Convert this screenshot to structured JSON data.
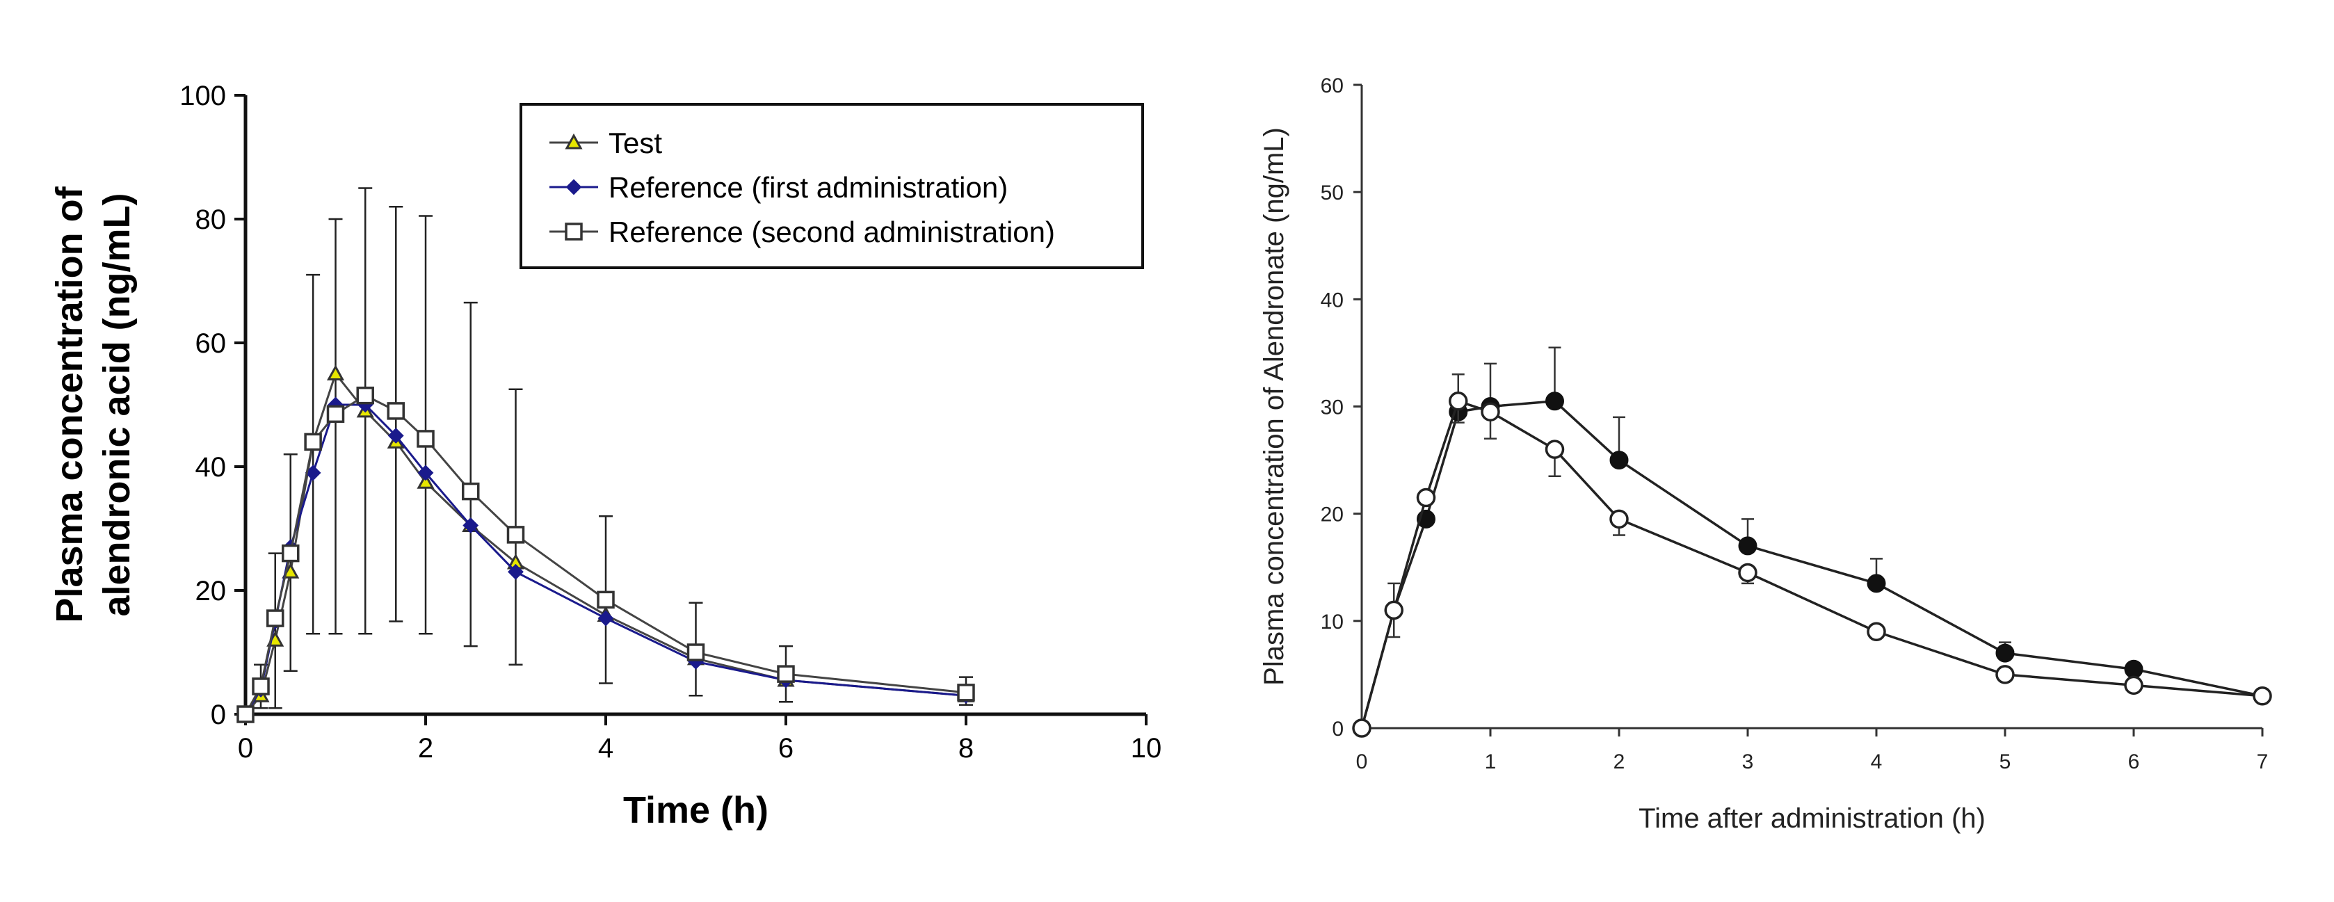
{
  "chart_data": [
    {
      "type": "line",
      "title": "",
      "xlabel": "Time (h)",
      "ylabel": [
        "Plasma concentration of",
        "alendronic acid (ng/mL)"
      ],
      "xlim": [
        0,
        10
      ],
      "ylim": [
        0,
        100
      ],
      "xticks": [
        0,
        2,
        4,
        6,
        8,
        10
      ],
      "yticks": [
        0,
        20,
        40,
        60,
        80,
        100
      ],
      "grid": false,
      "legend_position": "top-right",
      "x": [
        0,
        0.17,
        0.33,
        0.5,
        0.75,
        1,
        1.33,
        1.67,
        2,
        2.5,
        3,
        4,
        5,
        6,
        8
      ],
      "series": [
        {
          "name": "Test",
          "marker": "triangle",
          "color": "#444444",
          "fill": "#e6e600",
          "values": [
            0,
            3,
            12,
            23,
            44,
            55,
            49,
            44,
            37.5,
            30.5,
            24.5,
            16,
            9,
            5.5,
            3
          ]
        },
        {
          "name": "Reference (first administration)",
          "marker": "diamond",
          "color": "#1a1a8c",
          "fill": "#1a1a8c",
          "values": [
            0,
            4,
            15,
            27,
            39,
            50,
            50,
            45,
            39,
            30.5,
            23,
            15.5,
            8.5,
            5.5,
            3
          ]
        },
        {
          "name": "Reference (second administration)",
          "marker": "square",
          "color": "#444444",
          "fill": "#ffffff",
          "values": [
            0,
            4.5,
            15.5,
            26,
            44,
            48.5,
            51.5,
            49,
            44.5,
            36,
            29,
            18.5,
            10,
            6.5,
            3.5
          ]
        }
      ],
      "error_bars": {
        "upper": [
          null,
          8,
          26,
          42,
          71,
          80,
          85,
          82,
          80.5,
          66.5,
          52.5,
          32,
          18,
          11,
          6
        ],
        "lower": [
          null,
          1,
          1,
          7,
          13,
          13,
          13,
          15,
          13,
          11,
          8,
          5,
          3,
          2,
          1.5
        ]
      }
    },
    {
      "type": "line",
      "title": "",
      "xlabel": "Time after administration (h)",
      "ylabel": "Plasma concentration of Alendronate (ng/mL)",
      "xlim": [
        0,
        7
      ],
      "ylim": [
        0,
        60
      ],
      "xticks": [
        0,
        1,
        2,
        3,
        4,
        5,
        6,
        7
      ],
      "yticks": [
        0,
        10,
        20,
        30,
        40,
        50,
        60
      ],
      "grid": false,
      "x": [
        0,
        0.25,
        0.5,
        0.75,
        1,
        1.5,
        2,
        3,
        4,
        5,
        6,
        7
      ],
      "series": [
        {
          "name": "filled circles",
          "marker": "circle-filled",
          "color": "#222222",
          "values": [
            0,
            11,
            19.5,
            29.5,
            30,
            30.5,
            25,
            17,
            13.5,
            7,
            5.5,
            3
          ],
          "error_upper": [
            null,
            13.5,
            null,
            33,
            34,
            35.5,
            29,
            19.5,
            15.8,
            8,
            6,
            null
          ]
        },
        {
          "name": "open circles",
          "marker": "circle-open",
          "color": "#222222",
          "values": [
            0,
            11,
            21.5,
            30.5,
            29.5,
            26,
            19.5,
            14.5,
            9,
            5,
            4,
            3
          ],
          "error_lower": [
            null,
            8.5,
            null,
            28.5,
            27,
            23.5,
            18,
            13.5,
            8.5,
            null,
            null,
            null
          ]
        }
      ]
    }
  ]
}
